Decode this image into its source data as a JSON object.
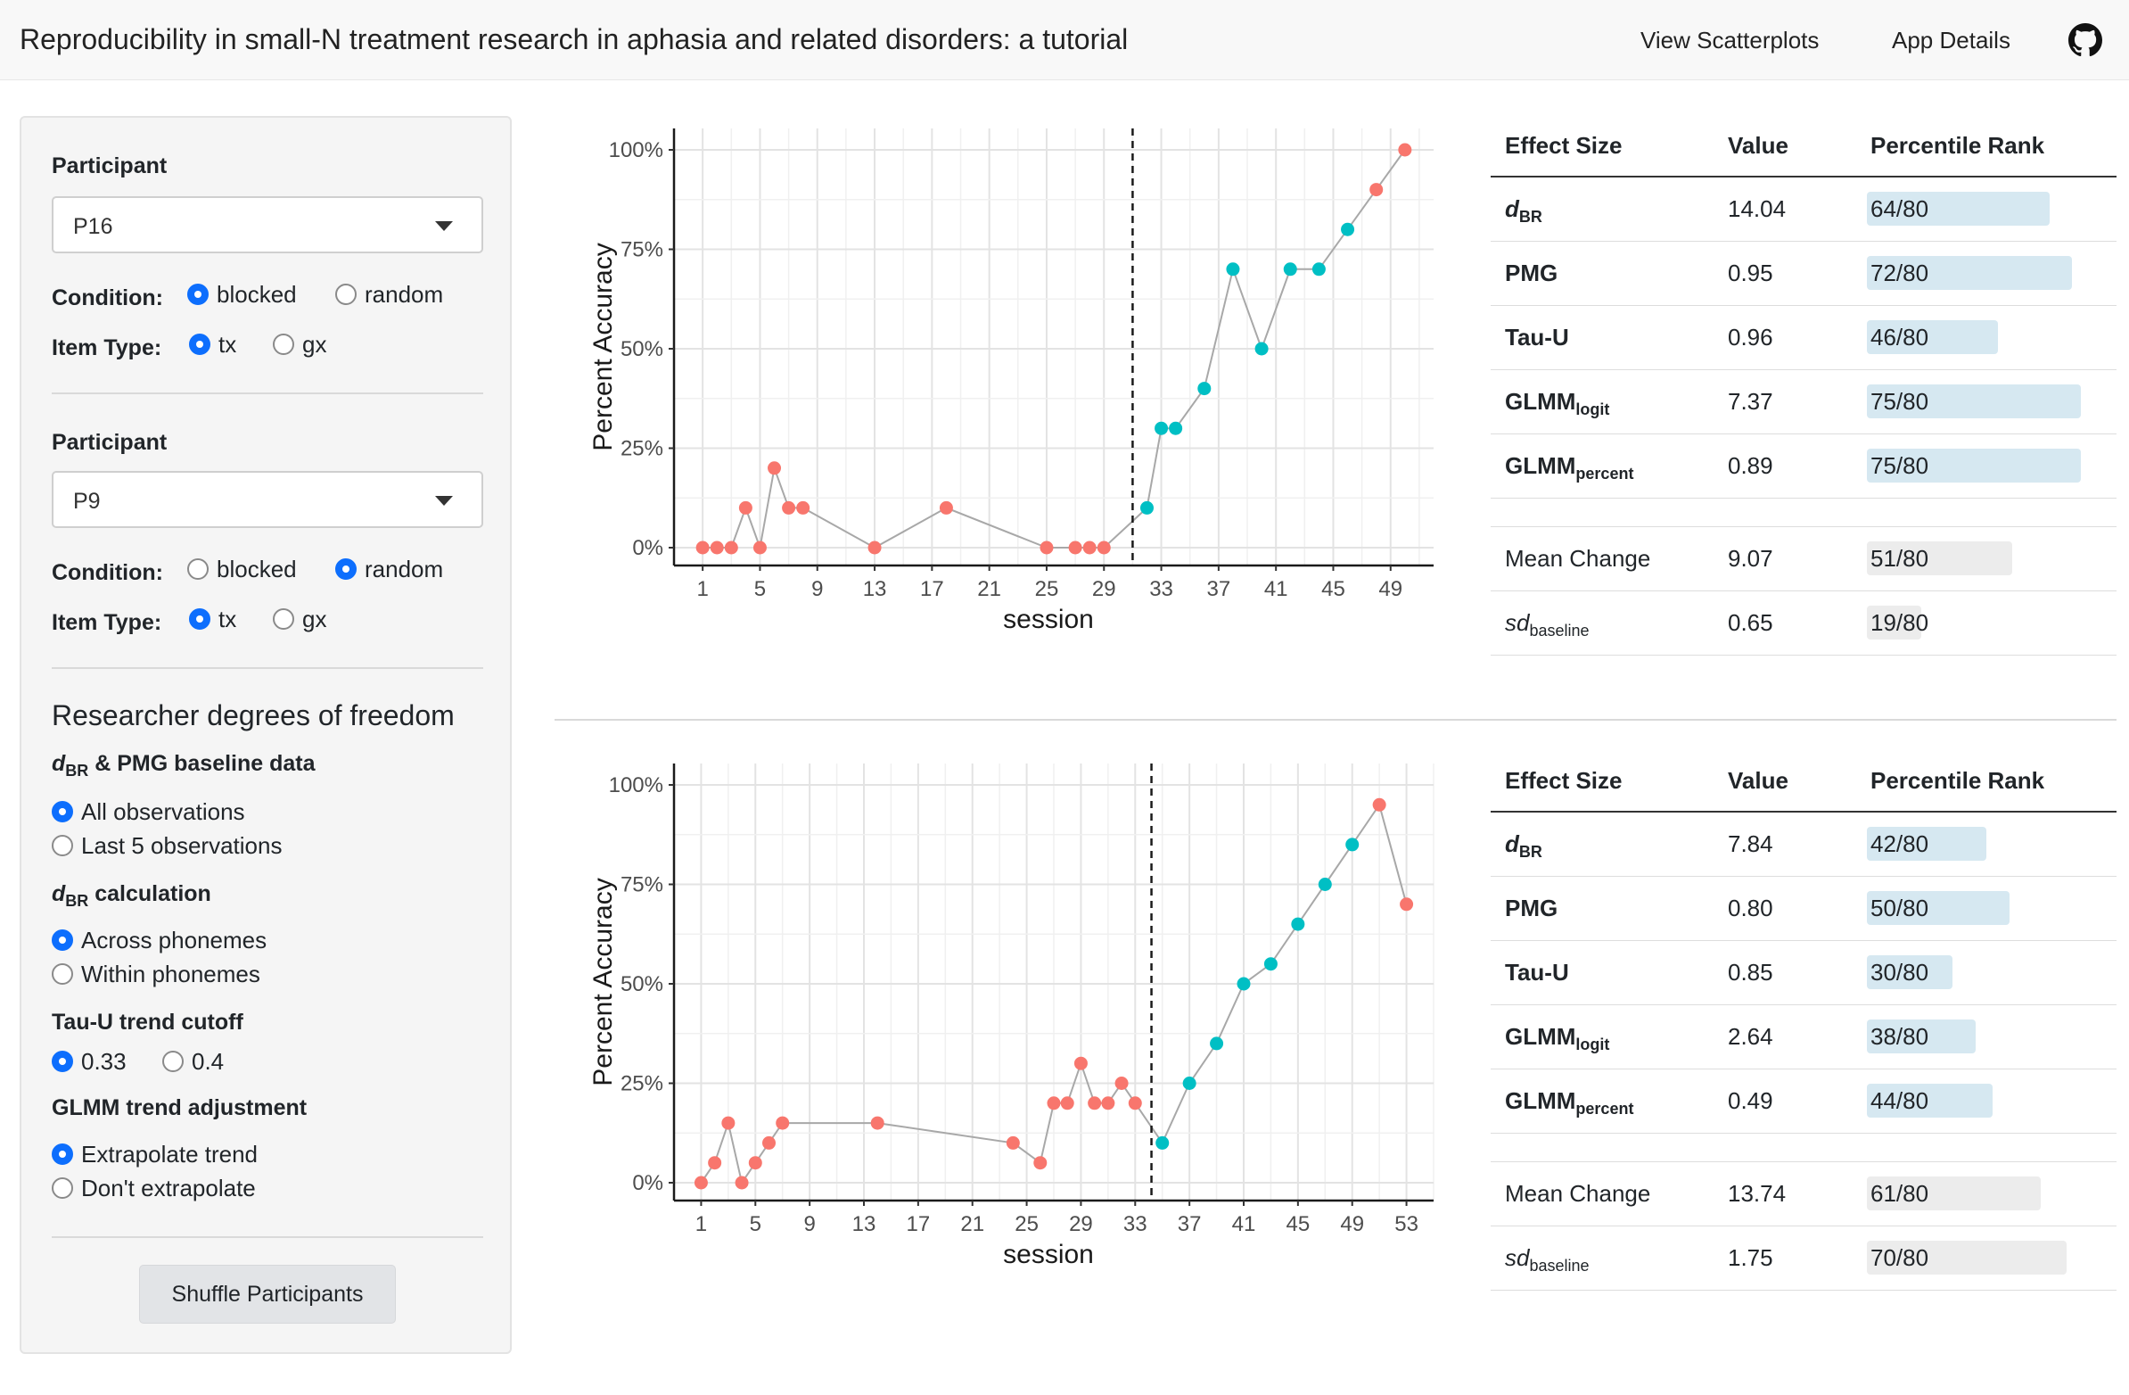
{
  "navbar": {
    "title": "Reproducibility in small-N treatment research in aphasia and related disorders: a tutorial",
    "links": [
      "View Scatterplots",
      "App Details"
    ]
  },
  "sidebar": {
    "participant_label": "Participant",
    "condition_label": "Condition:",
    "itemtype_label": "Item Type:",
    "p1": {
      "participant": "P16",
      "condition_options": [
        "blocked",
        "random"
      ],
      "condition_selected": "blocked",
      "itemtype_options": [
        "tx",
        "gx"
      ],
      "itemtype_selected": "tx"
    },
    "p2": {
      "participant": "P9",
      "condition_options": [
        "blocked",
        "random"
      ],
      "condition_selected": "random",
      "itemtype_options": [
        "tx",
        "gx"
      ],
      "itemtype_selected": "tx"
    },
    "rdof_title": "Researcher degrees of freedom",
    "dbr_pmg_label_d": "d",
    "dbr_pmg_label_sub": "BR",
    "dbr_pmg_label_rest": " & PMG baseline data",
    "baseline_options": [
      "All observations",
      "Last 5 observations"
    ],
    "dbr_calc_label_d": "d",
    "dbr_calc_label_sub": "BR",
    "dbr_calc_label_rest": " calculation",
    "calc_options": [
      "Across phonemes",
      "Within phonemes"
    ],
    "tau_label": "Tau-U trend cutoff",
    "tau_options": [
      "0.33",
      "0.4"
    ],
    "glmm_label": "GLMM trend adjustment",
    "glmm_options": [
      "Extrapolate trend",
      "Don't extrapolate"
    ],
    "shuffle_label": "Shuffle Participants"
  },
  "tables": [
    {
      "headers": [
        "Effect Size",
        "Value",
        "Percentile Rank"
      ],
      "rows": [
        {
          "name": "d",
          "sub": "BR",
          "value": "14.04",
          "rank": "64/80",
          "frac": 0.8,
          "highlight": true
        },
        {
          "name": "PMG",
          "sub": "",
          "value": "0.95",
          "rank": "72/80",
          "frac": 0.9,
          "highlight": true
        },
        {
          "name": "Tau-U",
          "sub": "",
          "value": "0.96",
          "rank": "46/80",
          "frac": 0.575,
          "highlight": true
        },
        {
          "name": "GLMM",
          "sub": "logit",
          "value": "7.37",
          "rank": "75/80",
          "frac": 0.9375,
          "highlight": true
        },
        {
          "name": "GLMM",
          "sub": "percent",
          "value": "0.89",
          "rank": "75/80",
          "frac": 0.9375,
          "highlight": true
        },
        {
          "name": "Mean Change",
          "sub": "",
          "value": "9.07",
          "rank": "51/80",
          "frac": 0.6375,
          "highlight": false
        },
        {
          "name": "sd",
          "sub": "baseline",
          "value": "0.65",
          "rank": "19/80",
          "frac": 0.2375,
          "highlight": false
        }
      ]
    },
    {
      "headers": [
        "Effect Size",
        "Value",
        "Percentile Rank"
      ],
      "rows": [
        {
          "name": "d",
          "sub": "BR",
          "value": "7.84",
          "rank": "42/80",
          "frac": 0.525,
          "highlight": true
        },
        {
          "name": "PMG",
          "sub": "",
          "value": "0.80",
          "rank": "50/80",
          "frac": 0.625,
          "highlight": true
        },
        {
          "name": "Tau-U",
          "sub": "",
          "value": "0.85",
          "rank": "30/80",
          "frac": 0.375,
          "highlight": true
        },
        {
          "name": "GLMM",
          "sub": "logit",
          "value": "2.64",
          "rank": "38/80",
          "frac": 0.475,
          "highlight": true
        },
        {
          "name": "GLMM",
          "sub": "percent",
          "value": "0.49",
          "rank": "44/80",
          "frac": 0.55,
          "highlight": true
        },
        {
          "name": "Mean Change",
          "sub": "",
          "value": "13.74",
          "rank": "61/80",
          "frac": 0.7625,
          "highlight": false
        },
        {
          "name": "sd",
          "sub": "baseline",
          "value": "1.75",
          "rank": "70/80",
          "frac": 0.875,
          "highlight": false
        }
      ]
    }
  ],
  "colors": {
    "baseline": "#F8766D",
    "treatment": "#00BFC4",
    "line": "#a8a8a8",
    "highlight_bar": "#d6e8f1",
    "grey_bar": "#ececec"
  },
  "chart_data": [
    {
      "type": "scatter",
      "xlabel": "session",
      "ylabel": "Percent Accuracy",
      "xlim": [
        -1,
        52
      ],
      "ylim": [
        0,
        1
      ],
      "xticks": [
        1,
        5,
        9,
        13,
        17,
        21,
        25,
        29,
        33,
        37,
        41,
        45,
        49
      ],
      "yticks": [
        0,
        0.25,
        0.5,
        0.75,
        1.0
      ],
      "ytick_labels": [
        "0%",
        "25%",
        "50%",
        "75%",
        "100%"
      ],
      "phase_line_x": 31,
      "series": [
        {
          "phase": "baseline",
          "x": [
            1,
            2,
            3,
            4,
            5,
            6,
            7,
            8,
            13,
            18,
            25,
            27,
            28,
            29
          ],
          "y": [
            0,
            0,
            0,
            0.1,
            0,
            0.2,
            0.1,
            0.1,
            0,
            0.1,
            0,
            0,
            0,
            0
          ]
        },
        {
          "phase": "treatment",
          "x": [
            32,
            33,
            34,
            36,
            38,
            40,
            42,
            44,
            46
          ],
          "y": [
            0.1,
            0.3,
            0.3,
            0.4,
            0.7,
            0.5,
            0.7,
            0.7,
            0.8
          ]
        },
        {
          "phase": "baseline",
          "x": [
            48,
            50
          ],
          "y": [
            0.9,
            1.0
          ]
        }
      ],
      "path": {
        "x": [
          1,
          2,
          3,
          4,
          5,
          6,
          7,
          8,
          13,
          18,
          25,
          27,
          28,
          29,
          32,
          33,
          34,
          36,
          38,
          40,
          42,
          44,
          46,
          48,
          50
        ],
        "y": [
          0,
          0,
          0,
          0.1,
          0,
          0.2,
          0.1,
          0.1,
          0,
          0.1,
          0,
          0,
          0,
          0,
          0.1,
          0.3,
          0.3,
          0.4,
          0.7,
          0.5,
          0.7,
          0.7,
          0.8,
          0.9,
          1.0
        ]
      }
    },
    {
      "type": "scatter",
      "xlabel": "session",
      "ylabel": "Percent Accuracy",
      "xlim": [
        -1,
        55
      ],
      "ylim": [
        0,
        1
      ],
      "xticks": [
        1,
        5,
        9,
        13,
        17,
        21,
        25,
        29,
        33,
        37,
        41,
        45,
        49,
        53
      ],
      "yticks": [
        0,
        0.25,
        0.5,
        0.75,
        1.0
      ],
      "ytick_labels": [
        "0%",
        "25%",
        "50%",
        "75%",
        "100%"
      ],
      "phase_line_x": 34.2,
      "series": [
        {
          "phase": "baseline",
          "x": [
            1,
            2,
            3,
            4,
            5,
            6,
            7,
            14,
            24,
            26,
            27,
            28,
            29,
            30,
            31,
            32,
            33
          ],
          "y": [
            0,
            0.05,
            0.15,
            0,
            0.05,
            0.1,
            0.15,
            0.15,
            0.1,
            0.05,
            0.2,
            0.2,
            0.3,
            0.2,
            0.2,
            0.25,
            0.2
          ]
        },
        {
          "phase": "treatment",
          "x": [
            35,
            37,
            39,
            41,
            43,
            45,
            47,
            49
          ],
          "y": [
            0.1,
            0.25,
            0.35,
            0.5,
            0.55,
            0.65,
            0.75,
            0.85
          ]
        },
        {
          "phase": "baseline",
          "x": [
            51,
            53
          ],
          "y": [
            0.95,
            0.7
          ]
        }
      ],
      "path": {
        "x": [
          1,
          2,
          3,
          4,
          5,
          6,
          7,
          14,
          24,
          26,
          27,
          28,
          29,
          30,
          31,
          32,
          33,
          35,
          37,
          39,
          41,
          43,
          45,
          47,
          49,
          51,
          53
        ],
        "y": [
          0,
          0.05,
          0.15,
          0,
          0.05,
          0.1,
          0.15,
          0.15,
          0.1,
          0.05,
          0.2,
          0.2,
          0.3,
          0.2,
          0.2,
          0.25,
          0.2,
          0.1,
          0.25,
          0.35,
          0.5,
          0.55,
          0.65,
          0.75,
          0.85,
          0.95,
          0.7
        ]
      }
    }
  ]
}
